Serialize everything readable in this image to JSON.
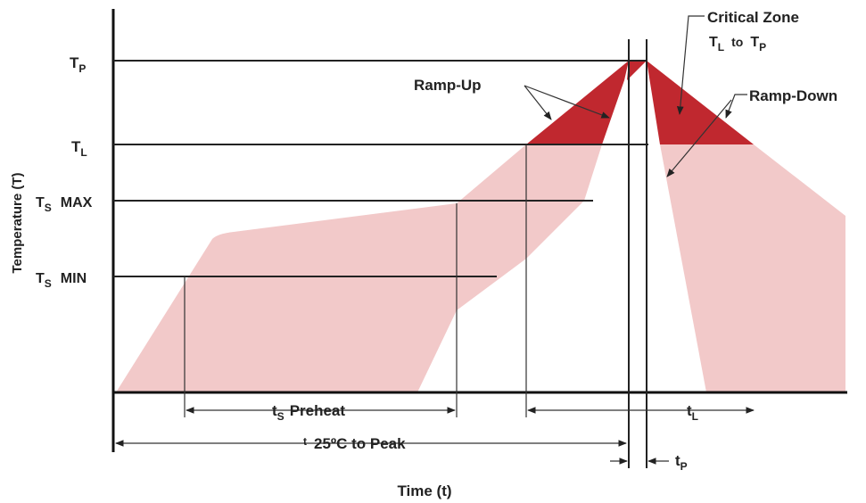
{
  "diagram": {
    "axes": {
      "y_label": "Temperature (T)",
      "x_label": "Time (t)"
    },
    "levels": {
      "tp": {
        "main": "T",
        "sub": "P"
      },
      "tl": {
        "main": "T",
        "sub": "L"
      },
      "ts_max": {
        "main": "T",
        "sub": "S",
        "suffix": "MAX"
      },
      "ts_min": {
        "main": "T",
        "sub": "S",
        "suffix": "MIN"
      }
    },
    "annotations": {
      "critical_zone": "Critical Zone",
      "critical_range": {
        "a_main": "T",
        "a_sub": "L",
        "mid": "to",
        "b_main": "T",
        "b_sub": "P"
      },
      "ramp_up": "Ramp-Up",
      "ramp_down": "Ramp-Down"
    },
    "intervals": {
      "preheat": {
        "main": "t",
        "sub": "S",
        "text": "Preheat"
      },
      "to_peak": {
        "main": "t",
        "text": "25ºC to Peak"
      },
      "tl": {
        "main": "t",
        "sub": "L"
      },
      "tp": {
        "main": "t",
        "sub": "P"
      }
    },
    "colors": {
      "envelope": "#f2c9c9",
      "critical": "#c0282f",
      "line": "#222222"
    }
  }
}
